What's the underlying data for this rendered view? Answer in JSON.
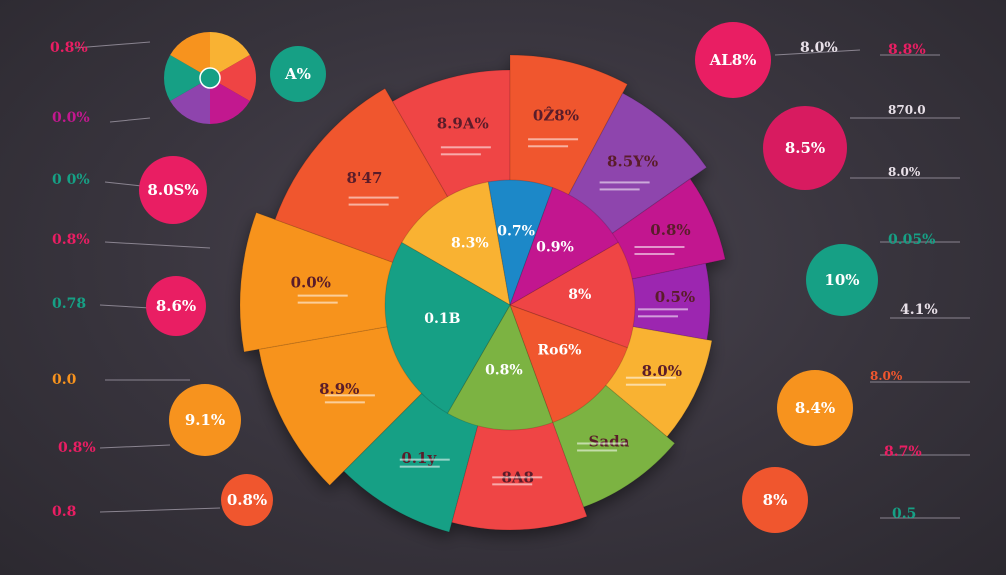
{
  "colors": {
    "red": "#ef4444",
    "red_orange": "#f0562e",
    "orange": "#f7931e",
    "yellow_orange": "#f9b233",
    "purple": "#8e44ad",
    "magenta": "#c2188f",
    "pink": "#e91e63",
    "teal": "#16a085",
    "green": "#7cb342",
    "blue": "#1e88c8",
    "text_light": "#f4f0f2",
    "text_dark": "#5a1d2a",
    "line": "#8a8490"
  },
  "chart_data": {
    "type": "pie",
    "ring_outer": {
      "slices": [
        {
          "label": "8.9A%",
          "color": "#ef4444"
        },
        {
          "label": "0Ẑ8%",
          "color": "#f0562e"
        },
        {
          "label": "8.5Y%",
          "color": "#8e44ad"
        },
        {
          "label": "0.8%",
          "color": "#c2188f"
        },
        {
          "label": "0.5%",
          "color": "#9c27b0"
        },
        {
          "label": "8.0%",
          "color": "#f9b233"
        },
        {
          "label": "Sada",
          "color": "#7cb342"
        },
        {
          "label": "8A8",
          "color": "#ef4444"
        },
        {
          "label": "0.1y",
          "color": "#16a085"
        },
        {
          "label": "8.9%",
          "color": "#f7931e"
        },
        {
          "label": "0.0%",
          "color": "#f7931e"
        },
        {
          "label": "8'47",
          "color": "#f0562e"
        }
      ]
    },
    "center_labels": [
      {
        "text": "8.3%",
        "color": "#f9b233"
      },
      {
        "text": "0.7%",
        "color": "#1e88c8"
      },
      {
        "text": "0.9%",
        "color": "#c2188f"
      },
      {
        "text": "8%",
        "color": "#ef4444"
      },
      {
        "text": "Ro6%",
        "color": "#f0562e"
      },
      {
        "text": "0.8%",
        "color": "#7cb342"
      },
      {
        "text": "0.1B",
        "color": "#16a085"
      }
    ]
  },
  "bubbles": [
    {
      "text": "A%",
      "color": "#16a085"
    },
    {
      "text": "8.0S%",
      "color": "#e91e63"
    },
    {
      "text": "8.6%",
      "color": "#e91e63"
    },
    {
      "text": "9.1%",
      "color": "#f7931e"
    },
    {
      "text": "0.8%",
      "color": "#f0562e"
    },
    {
      "text": "AL8%",
      "color": "#e91e63"
    },
    {
      "text": "8.5%",
      "color": "#d81b60"
    },
    {
      "text": "10%",
      "color": "#16a085"
    },
    {
      "text": "8.4%",
      "color": "#f7931e"
    },
    {
      "text": "8%",
      "color": "#f0562e"
    }
  ],
  "side_labels_left": [
    "0.8%",
    "0.0%",
    "0 0%",
    "0.8%",
    "0.78",
    "0.0",
    "0.8%",
    "0.8"
  ],
  "side_labels_right": [
    "8.0%",
    "8.8%",
    "870.0",
    "8.0%",
    "0.05%",
    "4.1%",
    "8.0%",
    "8.7%",
    "0.5"
  ]
}
